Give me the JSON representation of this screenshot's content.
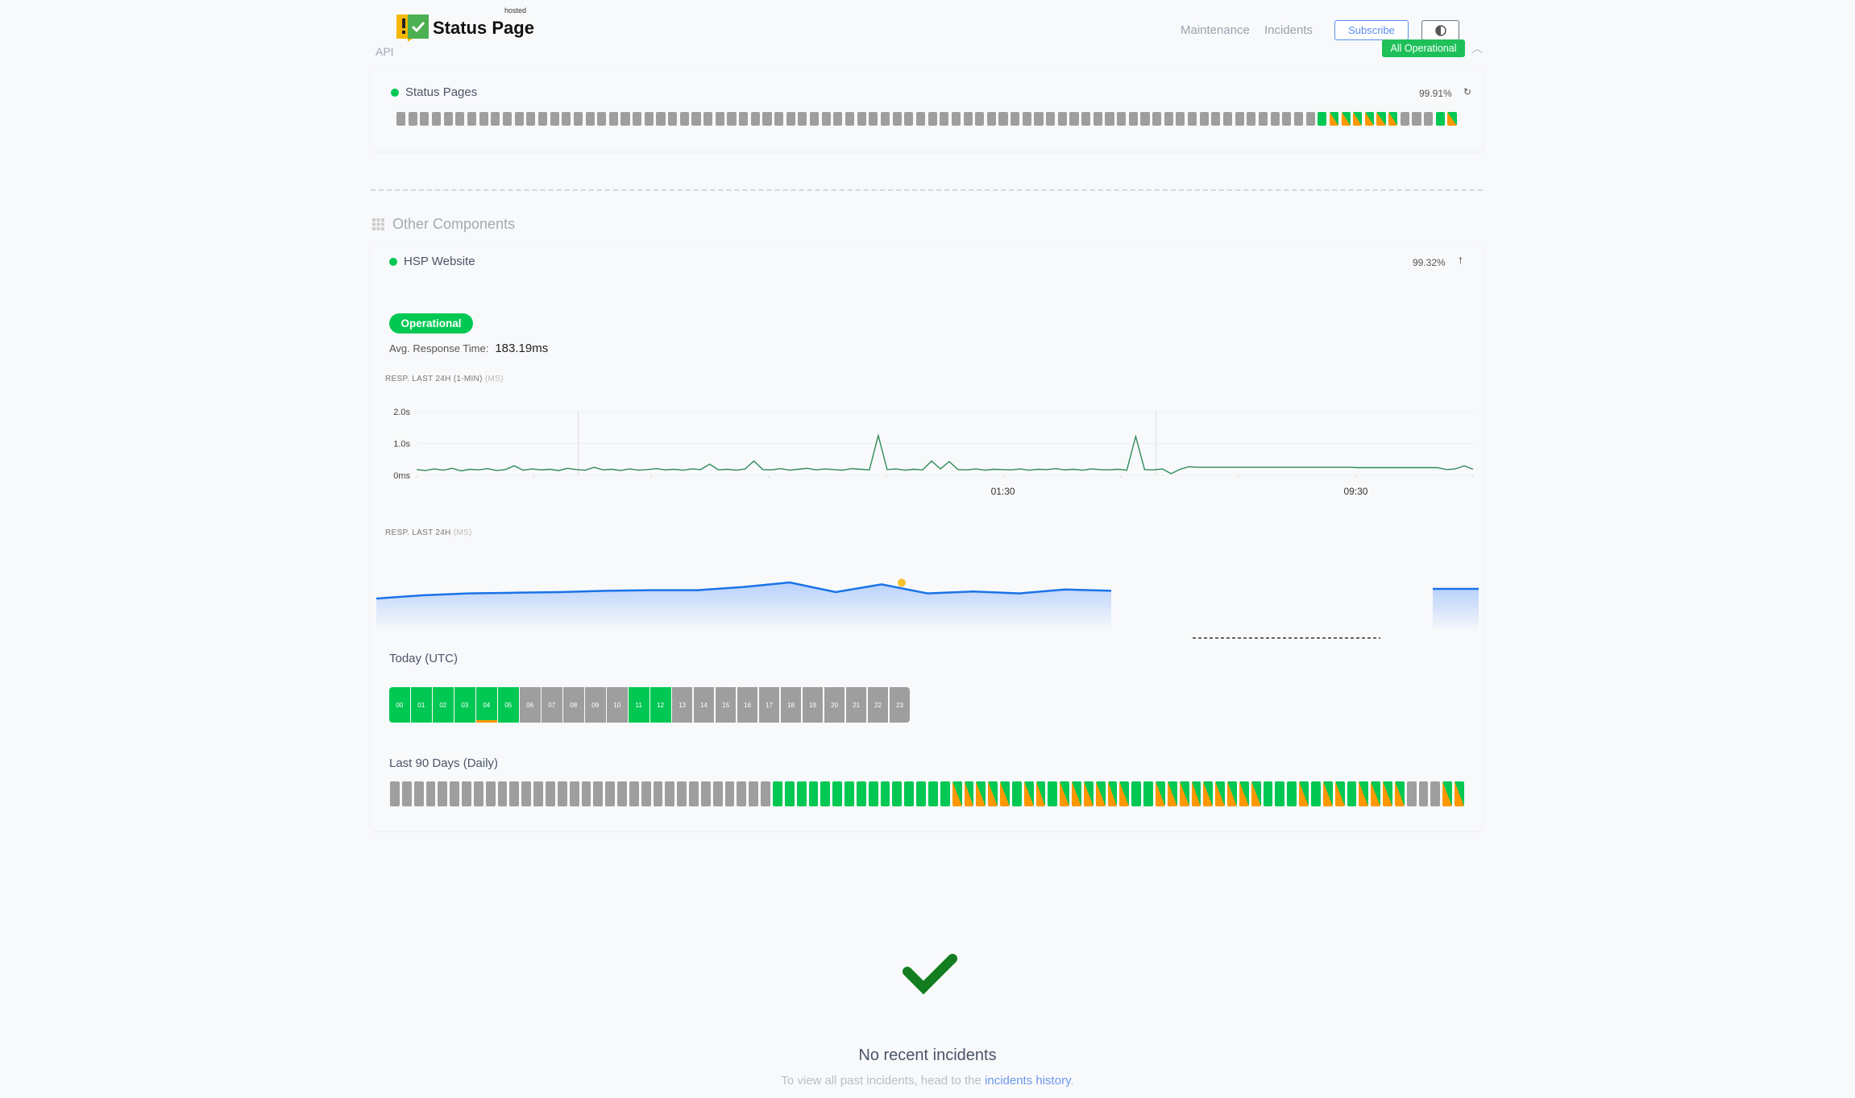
{
  "header": {
    "brand": "Status Page",
    "brand_sup": "hosted",
    "api_label": "API",
    "nav": [
      "Maintenance",
      "Incidents"
    ],
    "subscribe_label": "Subscribe",
    "overall_status": "All Operational",
    "icons": {
      "theme": "contrast-icon",
      "collapse": "chevron-up-icon"
    }
  },
  "colors": {
    "operational": "#00c853",
    "degraded": "#ff9800",
    "nodata": "#9e9e9e",
    "accent": "#5b8def",
    "line": "#1a73e8",
    "chart1": "#2e8b57"
  },
  "status_pages": {
    "name": "Status Pages",
    "uptime": "99.91%",
    "bars": "xxxxxxxxxxxxxxxxxxxxxxxxxxxxxxxxxxxxxxxxxxxxxxxxxxxxxxxxxxxxxxxxxxxxxxxxxxxxxxgmmmmmmxxxgm"
  },
  "other": {
    "title": "Other Components",
    "component": {
      "name": "HSP Website",
      "uptime": "99.32%",
      "status": "Operational",
      "avg_label": "Avg. Response Time:",
      "avg_value": "183.19ms",
      "chart1_label": "RESP. LAST 24H (1-MIN)",
      "chart1_unit": "(MS)",
      "chart2_label": "RESP. LAST 24H",
      "chart2_unit": "(MS)",
      "today_title": "Today (UTC)",
      "hours": [
        {
          "h": "00",
          "s": "g"
        },
        {
          "h": "01",
          "s": "g"
        },
        {
          "h": "02",
          "s": "g"
        },
        {
          "h": "03",
          "s": "g"
        },
        {
          "h": "04",
          "s": "g",
          "partial": true
        },
        {
          "h": "05",
          "s": "g"
        },
        {
          "h": "06",
          "s": "x"
        },
        {
          "h": "07",
          "s": "x"
        },
        {
          "h": "08",
          "s": "x"
        },
        {
          "h": "09",
          "s": "x"
        },
        {
          "h": "10",
          "s": "x"
        },
        {
          "h": "11",
          "s": "g"
        },
        {
          "h": "12",
          "s": "g"
        },
        {
          "h": "13",
          "s": "x"
        },
        {
          "h": "14",
          "s": "x"
        },
        {
          "h": "15",
          "s": "x"
        },
        {
          "h": "16",
          "s": "x"
        },
        {
          "h": "17",
          "s": "x"
        },
        {
          "h": "18",
          "s": "x"
        },
        {
          "h": "19",
          "s": "x"
        },
        {
          "h": "20",
          "s": "x"
        },
        {
          "h": "21",
          "s": "x"
        },
        {
          "h": "22",
          "s": "x"
        },
        {
          "h": "23",
          "s": "x"
        }
      ],
      "days_title": "Last 90 Days (Daily)",
      "days": "xxxxxxxxxxxxxxxxxxxxxxxxxxxxxxxxgggggggggggggggmmmmmgmmgmmmmmmggmmmmmmmmmgggmgmmgmmmmxxxmm"
    }
  },
  "incidents": {
    "title": "No recent incidents",
    "sub_prefix": "To view all past incidents, head to the",
    "link": "incidents history",
    "sub_suffix": "."
  },
  "chart_data": [
    {
      "type": "line",
      "y_ticks": [
        "0ms",
        "1.0s",
        "2.0s"
      ],
      "ylim": [
        0,
        2.0
      ],
      "x_ticks": [
        "01:30",
        "09:30"
      ],
      "grid": true,
      "values": [
        0.18,
        0.15,
        0.2,
        0.16,
        0.22,
        0.14,
        0.19,
        0.17,
        0.21,
        0.15,
        0.18,
        0.3,
        0.16,
        0.2,
        0.17,
        0.19,
        0.15,
        0.22,
        0.18,
        0.16,
        0.25,
        0.17,
        0.19,
        0.15,
        0.2,
        0.16,
        0.18,
        0.21,
        0.17,
        0.19,
        0.16,
        0.2,
        0.18,
        0.35,
        0.17,
        0.19,
        0.16,
        0.2,
        0.45,
        0.18,
        0.17,
        0.21,
        0.16,
        0.19,
        0.22,
        0.17,
        0.2,
        0.18,
        0.16,
        0.21,
        0.19,
        0.17,
        1.25,
        0.18,
        0.2,
        0.16,
        0.19,
        0.17,
        0.45,
        0.2,
        0.43,
        0.18,
        0.17,
        0.2,
        0.16,
        0.19,
        0.18,
        0.17,
        0.2,
        0.16,
        0.19,
        0.18,
        0.21,
        0.17,
        0.19,
        0.16,
        0.2,
        0.18,
        0.17,
        0.19,
        0.16,
        1.22,
        0.18,
        0.17,
        0.2,
        0.05,
        0.19,
        0.27,
        0.25,
        0.25,
        0.25,
        0.25,
        0.25,
        0.25,
        0.25,
        0.25,
        0.25,
        0.25,
        0.25,
        0.25,
        0.25,
        0.25,
        0.25,
        0.25,
        0.25,
        0.25,
        0.24,
        0.24,
        0.24,
        0.24,
        0.24,
        0.24,
        0.24,
        0.24,
        0.24,
        0.24,
        0.18,
        0.2,
        0.3,
        0.19
      ]
    },
    {
      "type": "area",
      "values": [
        170,
        175,
        178,
        179,
        180,
        182,
        183,
        183,
        188,
        195,
        180,
        192,
        178,
        181,
        178,
        184,
        182,
        null,
        null,
        null,
        null,
        null,
        null,
        185,
        185
      ],
      "highlight_index": 11
    }
  ]
}
